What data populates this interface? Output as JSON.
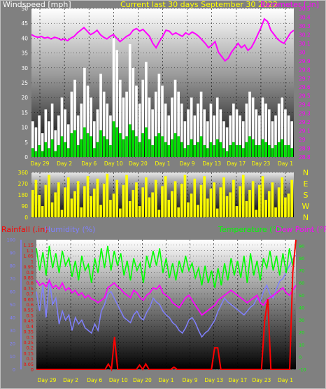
{
  "chart_data": [
    {
      "panel": "wind-baro",
      "type": "bar+line",
      "title": "Current last 30 days September 30 2022",
      "left_axis_title": "Windspeed [mph]",
      "right_axis_title": "Barometer [.in]",
      "left_ticks": [
        "0",
        "5",
        "10",
        "15",
        "20",
        "25",
        "30",
        "35",
        "40",
        "45",
        "50"
      ],
      "left_range": [
        0,
        50
      ],
      "right_ticks": [
        "28.8",
        "28.9",
        "29",
        "29.1",
        "29.2",
        "29.3",
        "29.4",
        "29.5",
        "29.6",
        "29.7",
        "29.8",
        "29.9",
        "30",
        "30.1",
        "30.2",
        "30.3",
        "30.4",
        "30.5"
      ],
      "right_range": [
        28.8,
        30.5
      ],
      "x_ticks": [
        "Day 29",
        "Day 2",
        "Day 6",
        "Day 10",
        "Day 20",
        "Day 1",
        "Day 9",
        "Day 13",
        "Day 17",
        "Day 23",
        "Day 1"
      ],
      "barometer_color": "#ff00ff",
      "gust_color": "#ffffff",
      "wind_color": "#00e000",
      "barometer": [
        30.2,
        30.18,
        30.17,
        30.18,
        30.16,
        30.17,
        30.15,
        30.17,
        30.16,
        30.14,
        30.15,
        30.13,
        30.16,
        30.18,
        30.22,
        30.25,
        30.28,
        30.24,
        30.2,
        30.22,
        30.25,
        30.2,
        30.17,
        30.15,
        30.18,
        30.2,
        30.16,
        30.12,
        30.15,
        30.18,
        30.2,
        30.25,
        30.27,
        30.24,
        30.26,
        30.22,
        30.18,
        30.1,
        30.05,
        30.12,
        30.18,
        30.25,
        30.24,
        30.2,
        30.22,
        30.2,
        30.18,
        30.22,
        30.2,
        30.23,
        30.21,
        30.18,
        30.14,
        30.1,
        30.05,
        30.08,
        30.12,
        30.0,
        29.95,
        29.9,
        29.93,
        30.0,
        30.05,
        30.1,
        30.05,
        30.08,
        30.02,
        30.05,
        30.12,
        30.2,
        30.28,
        30.38,
        30.35,
        30.25,
        30.2,
        30.15,
        30.12,
        30.1,
        30.16,
        30.22,
        30.25
      ],
      "wind_gust": [
        12,
        10,
        14,
        8,
        16,
        12,
        18,
        9,
        14,
        20,
        16,
        11,
        22,
        26,
        14,
        18,
        30,
        24,
        20,
        12,
        16,
        28,
        22,
        18,
        14,
        40,
        36,
        26,
        20,
        22,
        38,
        30,
        24,
        18,
        26,
        32,
        20,
        16,
        22,
        28,
        24,
        18,
        14,
        20,
        26,
        22,
        18,
        12,
        16,
        20,
        14,
        18,
        22,
        16,
        12,
        18,
        14,
        20,
        16,
        12,
        10,
        14,
        18,
        16,
        14,
        12,
        18,
        22,
        20,
        16,
        14,
        20,
        18,
        16,
        12,
        14,
        18,
        20,
        16,
        14,
        12
      ],
      "wind_avg": [
        3,
        2,
        4,
        2,
        5,
        3,
        6,
        2,
        4,
        7,
        5,
        3,
        8,
        9,
        4,
        6,
        10,
        8,
        7,
        3,
        5,
        9,
        7,
        6,
        4,
        12,
        10,
        8,
        6,
        7,
        11,
        9,
        7,
        5,
        8,
        10,
        6,
        4,
        7,
        8,
        7,
        5,
        4,
        6,
        8,
        7,
        5,
        3,
        4,
        6,
        4,
        5,
        7,
        4,
        3,
        5,
        4,
        6,
        5,
        3,
        2,
        4,
        5,
        4,
        4,
        3,
        5,
        7,
        6,
        4,
        4,
        6,
        5,
        4,
        3,
        4,
        5,
        6,
        4,
        4,
        3
      ]
    },
    {
      "panel": "wind-direction",
      "type": "bar",
      "left_ticks": [
        "0",
        "90",
        "180",
        "270",
        "360"
      ],
      "left_range": [
        0,
        360
      ],
      "compass_labels": [
        "N",
        "W",
        "S",
        "E",
        "N"
      ],
      "direction_color": "#ffff00",
      "direction": [
        220,
        300,
        180,
        90,
        260,
        340,
        120,
        200,
        280,
        60,
        240,
        320,
        150,
        210,
        290,
        80,
        250,
        330,
        170,
        230,
        310,
        100,
        270,
        350,
        140,
        190,
        300,
        70,
        260,
        340,
        130,
        220,
        280,
        90,
        240,
        320,
        160,
        200,
        300,
        60,
        250,
        330,
        140,
        210,
        290,
        80,
        270,
        340,
        120,
        190,
        310,
        100,
        260,
        330,
        150,
        230,
        280,
        70,
        240,
        320,
        170,
        200,
        300,
        90,
        250,
        340,
        130,
        220,
        290,
        60,
        260,
        330,
        140,
        210,
        280,
        80,
        240,
        320,
        160,
        190,
        300
      ],
      "x_ticks": [
        "Day 29",
        "Day 2",
        "Day 6",
        "Day 10",
        "Day 20",
        "Day 1",
        "Day 9",
        "Day 13",
        "Day 17",
        "Day 23",
        "Day 1"
      ]
    },
    {
      "panel": "rain-hum-temp",
      "type": "line",
      "rain_title": "Rainfall (.in)",
      "humidity_title": "Humidity (%)",
      "temperature_title": "Temperature (°F)",
      "dewpoint_title": "Dew Point (°F)",
      "rain_ticks": [
        "0",
        "0.05",
        "0.1",
        "0.15",
        "0.2",
        "0.25",
        "0.3",
        "0.35",
        "0.4",
        "0.45",
        "0.5",
        "0.55",
        "0.6",
        "0.65",
        "0.7",
        "0.75",
        "0.8",
        "0.85",
        "0.9",
        "0.95",
        "1",
        "1.05",
        "1.1",
        "1.15"
      ],
      "rain_range": [
        0,
        1.2
      ],
      "humidity_ticks": [
        "0",
        "10",
        "20",
        "30",
        "40",
        "50",
        "60",
        "70",
        "80",
        "90",
        "100"
      ],
      "humidity_range": [
        0,
        100
      ],
      "temp_ticks": [
        "-10",
        "0",
        "10",
        "20",
        "30",
        "40",
        "50",
        "60",
        "70",
        "80",
        "90"
      ],
      "temp_range": [
        -10,
        95
      ],
      "x_ticks": [
        "Day 29",
        "Day 2",
        "Day 6",
        "Day 10",
        "Day 20",
        "Day 1",
        "Day 9",
        "Day 13",
        "Day 17",
        "Day 23",
        "Day 1"
      ],
      "rain_color": "#ff0000",
      "humidity_color": "#8080ff",
      "temperature_color": "#00ff00",
      "dewpoint_color": "#ff00ff",
      "temperature": [
        88,
        70,
        85,
        66,
        90,
        72,
        84,
        68,
        86,
        74,
        80,
        65,
        78,
        62,
        82,
        70,
        75,
        60,
        80,
        68,
        88,
        72,
        90,
        70,
        86,
        74,
        84,
        66,
        78,
        62,
        80,
        70,
        76,
        60,
        82,
        72,
        86,
        74,
        88,
        68,
        80,
        64,
        76,
        62,
        78,
        68,
        82,
        70,
        76,
        64,
        72,
        58,
        74,
        60,
        70,
        56,
        72,
        58,
        76,
        62,
        80,
        66,
        78,
        64,
        82,
        60,
        84,
        66,
        78,
        62,
        80,
        72,
        86,
        70,
        82,
        66,
        84,
        68,
        88,
        74,
        92
      ],
      "dewpoint": [
        62,
        58,
        60,
        57,
        62,
        56,
        58,
        55,
        60,
        54,
        56,
        52,
        54,
        50,
        52,
        48,
        50,
        47,
        46,
        44,
        46,
        48,
        56,
        58,
        60,
        57,
        55,
        52,
        50,
        48,
        54,
        52,
        48,
        46,
        50,
        52,
        56,
        55,
        58,
        52,
        50,
        48,
        44,
        42,
        40,
        44,
        48,
        50,
        46,
        42,
        38,
        34,
        36,
        38,
        40,
        42,
        46,
        48,
        50,
        52,
        54,
        52,
        50,
        48,
        46,
        44,
        46,
        48,
        50,
        44,
        42,
        46,
        48,
        50,
        52,
        54,
        56,
        52,
        50,
        54,
        58
      ],
      "humidity": [
        60,
        45,
        65,
        40,
        70,
        50,
        55,
        35,
        45,
        38,
        42,
        30,
        40,
        35,
        38,
        32,
        30,
        28,
        35,
        30,
        45,
        50,
        58,
        60,
        55,
        50,
        45,
        40,
        38,
        36,
        42,
        45,
        40,
        38,
        44,
        48,
        55,
        52,
        50,
        45,
        42,
        40,
        36,
        34,
        30,
        28,
        32,
        38,
        40,
        36,
        30,
        25,
        28,
        30,
        34,
        38,
        45,
        50,
        55,
        52,
        50,
        48,
        46,
        44,
        42,
        45,
        48,
        50,
        55,
        52,
        60,
        65,
        58,
        55,
        62,
        68,
        70,
        75,
        80,
        85,
        88
      ],
      "rain": [
        0,
        0,
        0,
        0,
        0,
        0,
        0,
        0,
        0,
        0,
        0,
        0,
        0,
        0,
        0,
        0,
        0,
        0,
        0,
        0,
        0,
        0,
        0,
        0.05,
        0,
        0.3,
        0,
        0,
        0,
        0,
        0,
        0,
        0,
        0.04,
        0,
        0.05,
        0,
        0,
        0,
        0,
        0,
        0,
        0,
        0,
        0.02,
        0,
        0,
        0,
        0,
        0,
        0,
        0,
        0,
        0,
        0,
        0,
        0,
        0.2,
        0.2,
        0,
        0,
        0,
        0,
        0,
        0,
        0,
        0,
        0,
        0,
        0,
        0,
        0,
        0,
        0.45,
        0.65,
        0,
        0,
        0,
        0,
        0,
        0,
        0,
        0.9,
        1.2
      ]
    }
  ]
}
